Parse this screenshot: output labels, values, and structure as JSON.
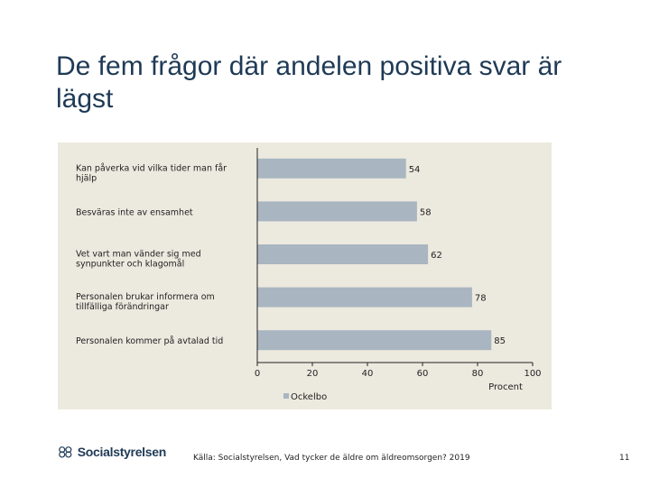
{
  "slide": {
    "title": "De fem frågor där andelen positiva svar är lägst",
    "source": "Källa: Socialstyrelsen, Vad tycker de äldre om äldreomsorgen? 2019",
    "page_number": "11",
    "logo_text": "Socialstyrelsen"
  },
  "chart_data": {
    "type": "bar",
    "orientation": "horizontal",
    "categories": [
      "Kan påverka vid vilka tider man får hjälp",
      "Besväras inte av ensamhet",
      "Vet vart man vänder sig med synpunkter och klagomål",
      "Personalen brukar informera om tillfälliga förändringar",
      "Personalen kommer på avtalad tid"
    ],
    "series": [
      {
        "name": "Ockelbo",
        "values": [
          54,
          58,
          62,
          78,
          85
        ]
      }
    ],
    "xlim": [
      0,
      100
    ],
    "xticks": [
      "0",
      "20",
      "40",
      "60",
      "80",
      "100"
    ],
    "xlabel": "Procent",
    "grid": false,
    "legend": "bottom",
    "colors": {
      "bar": "#a9b6c1",
      "panel": "#ece9df",
      "title": "#1f3a56"
    }
  }
}
